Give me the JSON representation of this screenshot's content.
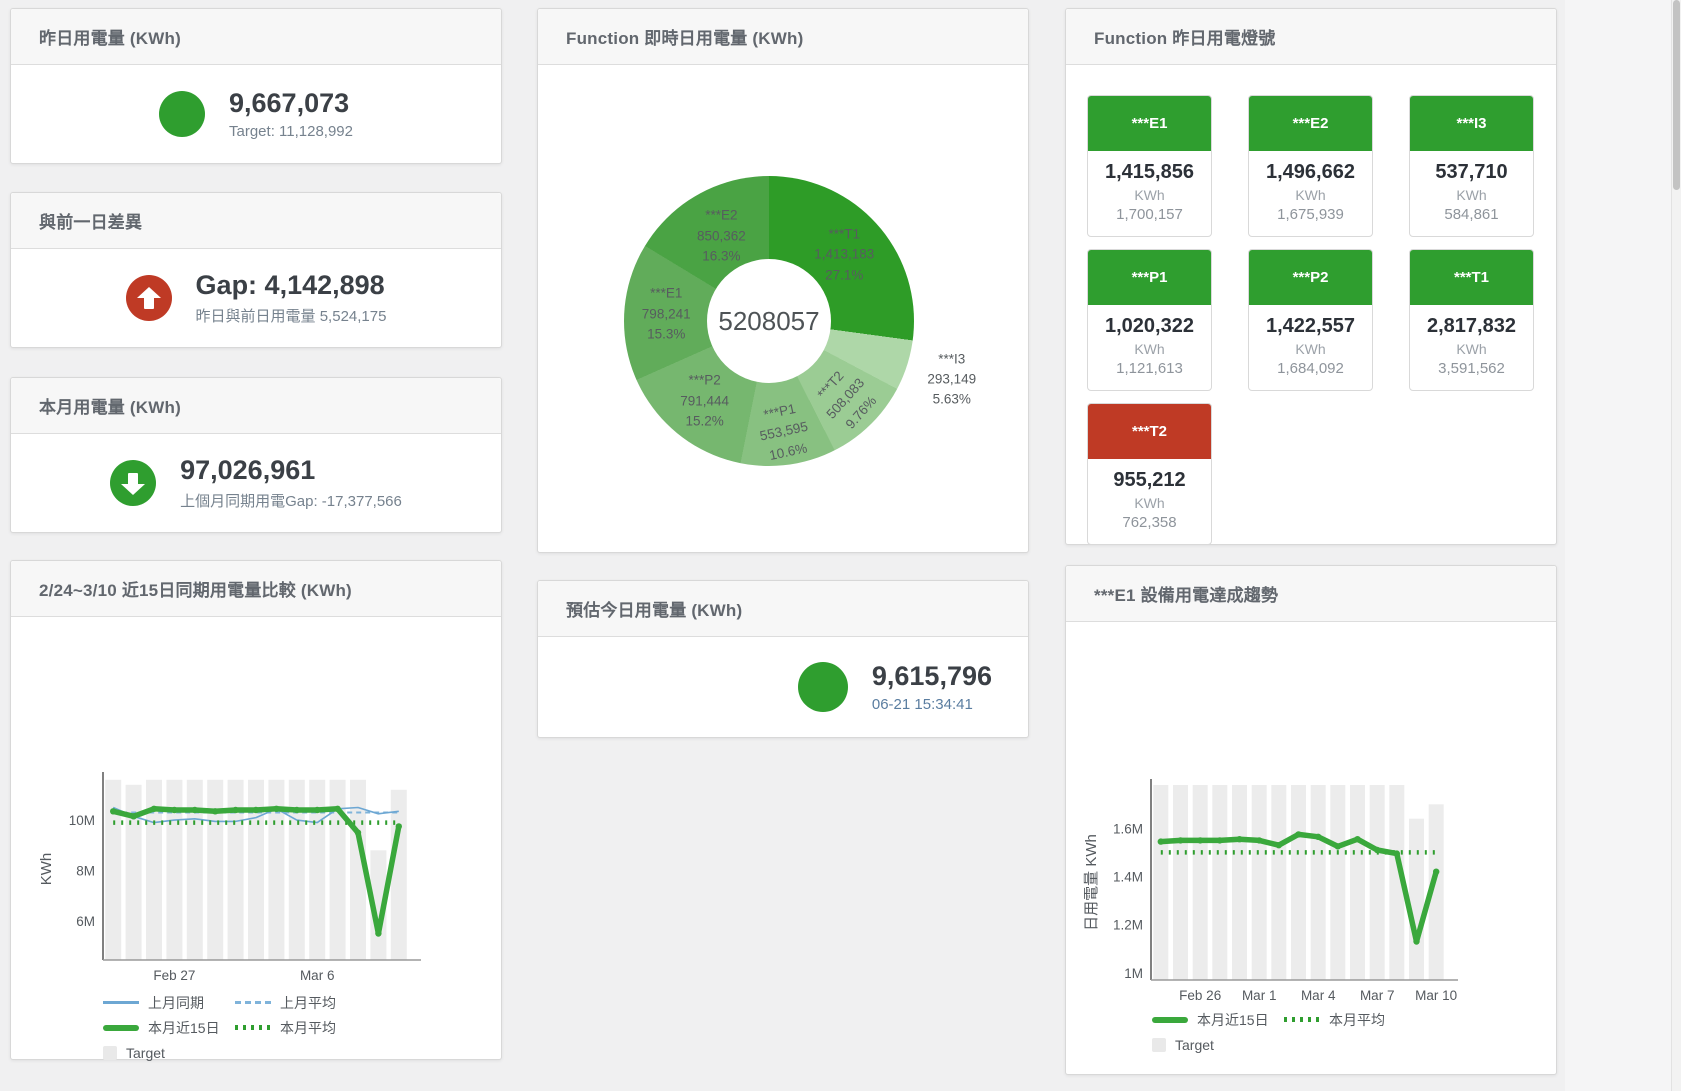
{
  "colors": {
    "green": "#2f9e2f",
    "red": "#bf3a25",
    "value_dark": "#3b4046",
    "bar_gray": "#ececec",
    "blue_line": "#6da7d3",
    "blue_dashed": "#7fb3da",
    "green_thick": "#3aa83c",
    "green_dotted": "#2f9e2f"
  },
  "stat_panels": [
    {
      "title": "昨日用電量 (KWh)",
      "value": "9,667,073",
      "subtitle": "Target: 11,128,992",
      "icon": "circle",
      "icon_color": "green"
    },
    {
      "title": "與前一日差異",
      "value": "Gap: 4,142,898",
      "subtitle": "昨日與前日用電量 5,524,175",
      "icon": "arrow-up",
      "icon_color": "red"
    },
    {
      "title": "本月用電量 (KWh)",
      "value": "97,026,961",
      "subtitle": "上個月同期用電Gap: -17,377,566",
      "icon": "arrow-down",
      "icon_color": "green"
    }
  ],
  "estimate_panel": {
    "title": "預估今日用電量 (KWh)",
    "value": "9,615,796",
    "subtitle": "06-21 15:34:41",
    "icon": "circle",
    "icon_color": "green"
  },
  "lights_panel": {
    "title": "Function 昨日用電燈號",
    "unit": "KWh",
    "tiles": [
      {
        "label": "***E1",
        "value": "1,415,856",
        "target": "1,700,157",
        "status": "green"
      },
      {
        "label": "***E2",
        "value": "1,496,662",
        "target": "1,675,939",
        "status": "green"
      },
      {
        "label": "***I3",
        "value": "537,710",
        "target": "584,861",
        "status": "green"
      },
      {
        "label": "***P1",
        "value": "1,020,322",
        "target": "1,121,613",
        "status": "green"
      },
      {
        "label": "***P2",
        "value": "1,422,557",
        "target": "1,684,092",
        "status": "green"
      },
      {
        "label": "***T1",
        "value": "2,817,832",
        "target": "3,591,562",
        "status": "green"
      },
      {
        "label": "***T2",
        "value": "955,212",
        "target": "762,358",
        "status": "red"
      }
    ]
  },
  "chart_data": [
    {
      "type": "pie",
      "title": "Function 即時日用電量 (KWh)",
      "donut": true,
      "center_total": "5208057",
      "segments": [
        {
          "name": "***T1",
          "value": 1413183,
          "display": "1,413,183",
          "pct": "27.1%",
          "color": "#2e9c27"
        },
        {
          "name": "***I3",
          "value": 293149,
          "display": "293,149",
          "pct": "5.63%",
          "color": "#aed7a8",
          "label_outside": true
        },
        {
          "name": "***T2",
          "value": 508083,
          "display": "508,083",
          "pct": "9.76%",
          "color": "#9bcc94"
        },
        {
          "name": "***P1",
          "value": 553595,
          "display": "553,595",
          "pct": "10.6%",
          "color": "#88c181"
        },
        {
          "name": "***P2",
          "value": 791444,
          "display": "791,444",
          "pct": "15.2%",
          "color": "#76b76f"
        },
        {
          "name": "***E1",
          "value": 798241,
          "display": "798,241",
          "pct": "15.3%",
          "color": "#61ac5a"
        },
        {
          "name": "***E2",
          "value": 850362,
          "display": "850,362",
          "pct": "16.3%",
          "color": "#4aa344"
        }
      ]
    },
    {
      "type": "line",
      "title": "2/24~3/10 近15日同期用電量比較 (KWh)",
      "ylabel": "KWh",
      "unit": "millions of KWh",
      "x": [
        "2/24",
        "2/25",
        "2/26",
        "2/27",
        "2/28",
        "3/1",
        "3/2",
        "3/3",
        "3/4",
        "3/5",
        "3/6",
        "3/7",
        "3/8",
        "3/9",
        "3/10"
      ],
      "xticks": [
        [
          3,
          "Feb 27"
        ],
        [
          10,
          "Mar 6"
        ]
      ],
      "yticks": [
        [
          6,
          "6M"
        ],
        [
          8,
          "8M"
        ],
        [
          10,
          "10M"
        ]
      ],
      "ylim": [
        4.45,
        11.67
      ],
      "grid": false,
      "legend_position": "bottom-left",
      "series": [
        {
          "name": "Target",
          "style": "bar",
          "color": "#ececec",
          "values": [
            11.6,
            11.4,
            11.6,
            11.6,
            11.6,
            11.6,
            11.6,
            11.6,
            11.6,
            11.6,
            11.6,
            11.6,
            11.6,
            8.8,
            11.2
          ]
        },
        {
          "name": "上月平均",
          "style": "dashed",
          "color": "#7fb3da",
          "values": [
            10.3,
            10.3,
            10.3,
            10.3,
            10.3,
            10.3,
            10.3,
            10.3,
            10.3,
            10.3,
            10.3,
            10.3,
            10.3,
            10.3,
            10.3
          ]
        },
        {
          "name": "上月同期",
          "style": "solid",
          "color": "#6da7d3",
          "values": [
            10.5,
            10.15,
            9.9,
            10.0,
            10.05,
            9.95,
            9.95,
            10.1,
            10.45,
            10.0,
            9.9,
            10.45,
            10.5,
            10.25,
            10.35
          ]
        },
        {
          "name": "本月平均",
          "style": "dotted",
          "color": "#2f9e2f",
          "values": [
            9.9,
            9.9,
            9.9,
            9.9,
            9.9,
            9.9,
            9.9,
            9.9,
            9.9,
            9.9,
            9.9,
            9.9,
            9.9,
            9.9,
            9.9
          ]
        },
        {
          "name": "本月近15日",
          "style": "thick",
          "color": "#3aa83c",
          "values": [
            10.35,
            10.15,
            10.45,
            10.4,
            10.4,
            10.35,
            10.4,
            10.4,
            10.45,
            10.4,
            10.4,
            10.45,
            9.5,
            5.5,
            9.75
          ]
        }
      ],
      "legend": [
        {
          "label": "上月同期",
          "swatch": "solid",
          "color": "#6da7d3"
        },
        {
          "label": "上月平均",
          "swatch": "dashed",
          "color": "#7fb3da"
        },
        {
          "label": "本月近15日",
          "swatch": "thick",
          "color": "#3aa83c"
        },
        {
          "label": "本月平均",
          "swatch": "dotted",
          "color": "#2f9e2f"
        },
        {
          "label": "Target",
          "swatch": "square",
          "color": "#e9e9e9"
        }
      ]
    },
    {
      "type": "line",
      "title": "***E1 設備用電達成趨勢",
      "ylabel": "日用電量 KWh",
      "unit": "millions of KWh",
      "x": [
        "2/24",
        "2/25",
        "2/26",
        "2/27",
        "2/28",
        "3/1",
        "3/2",
        "3/3",
        "3/4",
        "3/5",
        "3/6",
        "3/7",
        "3/8",
        "3/9",
        "3/10"
      ],
      "xticks": [
        [
          2,
          "Feb 26"
        ],
        [
          5,
          "Mar 1"
        ],
        [
          8,
          "Mar 4"
        ],
        [
          11,
          "Mar 7"
        ],
        [
          14,
          "Mar 10"
        ]
      ],
      "yticks": [
        [
          1,
          "1M"
        ],
        [
          1.2,
          "1.2M"
        ],
        [
          1.4,
          "1.4M"
        ],
        [
          1.6,
          "1.6M"
        ]
      ],
      "ylim": [
        0.97,
        1.78
      ],
      "grid": false,
      "legend_position": "bottom-left",
      "series": [
        {
          "name": "Target",
          "style": "bar",
          "color": "#ececec",
          "values": [
            1.78,
            1.78,
            1.78,
            1.78,
            1.78,
            1.78,
            1.78,
            1.78,
            1.78,
            1.78,
            1.78,
            1.78,
            1.78,
            1.64,
            1.7
          ]
        },
        {
          "name": "本月平均",
          "style": "dotted",
          "color": "#2f9e2f",
          "values": [
            1.5,
            1.5,
            1.5,
            1.5,
            1.5,
            1.5,
            1.5,
            1.5,
            1.5,
            1.5,
            1.5,
            1.5,
            1.5,
            1.5,
            1.5
          ]
        },
        {
          "name": "本月近15日",
          "style": "thick",
          "color": "#3aa83c",
          "values": [
            1.545,
            1.55,
            1.55,
            1.55,
            1.555,
            1.55,
            1.53,
            1.575,
            1.565,
            1.525,
            1.555,
            1.51,
            1.495,
            1.13,
            1.42
          ]
        }
      ],
      "legend": [
        {
          "label": "本月近15日",
          "swatch": "thick",
          "color": "#3aa83c"
        },
        {
          "label": "本月平均",
          "swatch": "dotted",
          "color": "#2f9e2f"
        },
        {
          "label": "Target",
          "swatch": "square",
          "color": "#e9e9e9"
        }
      ]
    }
  ]
}
